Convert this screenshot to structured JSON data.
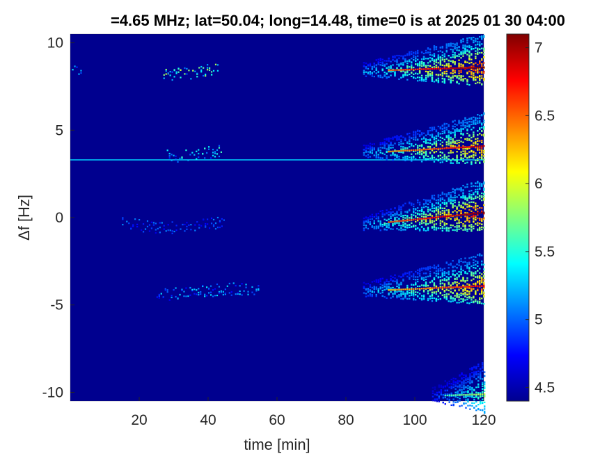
{
  "chart_data": {
    "type": "heatmap",
    "title": "=4.65 MHz;  lat=50.04; long=14.48, time=0 is at 2025 01 30 04:00",
    "xlabel": "time [min]",
    "ylabel": "Δf [Hz]",
    "xlim": [
      0,
      120
    ],
    "ylim": [
      -10.5,
      10.5
    ],
    "xticks": [
      20,
      40,
      60,
      80,
      100,
      120
    ],
    "xtick_labels": [
      "20",
      "40",
      "60",
      "80",
      "100",
      "120"
    ],
    "yticks": [
      10,
      5,
      0,
      -5,
      -10
    ],
    "ytick_labels": [
      "10",
      "5",
      "0",
      "-5",
      "-10"
    ],
    "colormap": "jet",
    "clim": [
      4.4,
      7.1
    ],
    "colorbar_ticks": [
      7,
      6.5,
      6,
      5.5,
      5,
      4.5
    ],
    "colorbar_tick_labels": [
      "7",
      "6.5",
      "6",
      "5.5",
      "5",
      "4.5"
    ],
    "background_color": "#00008f",
    "constant_line": {
      "freq": 3.3,
      "level": 5.3
    },
    "tracks": [
      {
        "freq_start": 8.4,
        "freq_end": 8.6,
        "onset": 85,
        "peak": 7.1,
        "early_activity": [
          [
            2,
            1.5,
            5.2
          ],
          [
            35,
            8,
            5.7
          ]
        ]
      },
      {
        "freq_start": 3.7,
        "freq_end": 4.1,
        "onset": 85,
        "peak": 6.9,
        "early_activity": [
          [
            36,
            8,
            5.4
          ]
        ]
      },
      {
        "freq_start": -0.4,
        "freq_end": 0.3,
        "onset": 85,
        "peak": 7.1,
        "early_activity": [
          [
            30,
            15,
            5.0
          ]
        ]
      },
      {
        "freq_start": -4.2,
        "freq_end": -3.9,
        "onset": 85,
        "peak": 6.8,
        "early_activity": [
          [
            40,
            15,
            5.2
          ]
        ]
      },
      {
        "freq_start": -10.2,
        "freq_end": -10.1,
        "onset": 105,
        "peak": 5.9,
        "early_activity": []
      }
    ]
  }
}
